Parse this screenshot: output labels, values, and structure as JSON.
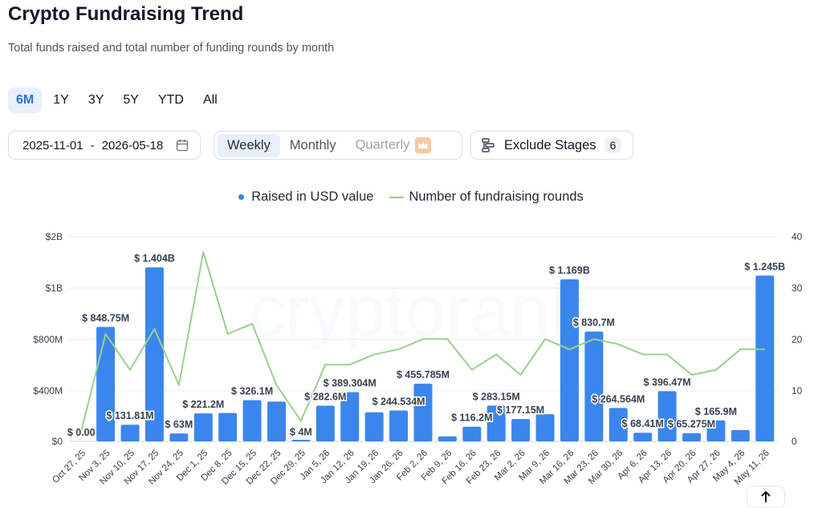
{
  "header": {
    "title": "Crypto Fundraising Trend",
    "subtitle": "Total funds raised and total number of funding rounds by month"
  },
  "ranges": [
    "6M",
    "1Y",
    "3Y",
    "5Y",
    "YTD",
    "All"
  ],
  "active_range": "6M",
  "date_range": {
    "start": "2025-11-01",
    "separator": "-",
    "end": "2026-05-18"
  },
  "periods": {
    "weekly": "Weekly",
    "monthly": "Monthly",
    "quarterly": "Quarterly",
    "active": "Weekly"
  },
  "exclude": {
    "label": "Exclude Stages",
    "count": "6"
  },
  "watermark": "cryptorank",
  "colors": {
    "bar": "#3b86ec",
    "line": "#98d28b",
    "accent": "#2f6fd6"
  },
  "chart_data": {
    "type": "bar",
    "legend_placement": "top-center",
    "grid": true,
    "categories": [
      "Oct 27, 25",
      "Nov 3, 25",
      "Nov 10, 25",
      "Nov 17, 25",
      "Nov 24, 25",
      "Dec 1, 25",
      "Dec 8, 25",
      "Dec 15, 25",
      "Dec 22, 25",
      "Dec 29, 25",
      "Jan 5, 26",
      "Jan 12, 26",
      "Jan 19, 26",
      "Jan 26, 26",
      "Feb 2, 26",
      "Feb 9, 26",
      "Feb 16, 26",
      "Feb 23, 26",
      "Mar 2, 26",
      "Mar 9, 26",
      "Mar 16, 26",
      "Mar 23, 26",
      "Mar 30, 26",
      "Apr 6, 26",
      "Apr 13, 26",
      "Apr 20, 26",
      "Apr 27, 26",
      "May 4, 26",
      "May 11, 26"
    ],
    "y_left": {
      "ticks": [
        "$0",
        "$400M",
        "$800M",
        "$1B",
        "$2B"
      ],
      "tick_values": [
        0,
        400,
        800,
        1000,
        2000
      ]
    },
    "y_right": {
      "ticks": [
        "0",
        "10",
        "20",
        "30",
        "40"
      ],
      "range": [
        0,
        40
      ]
    },
    "series": [
      {
        "name": "Raised in USD value",
        "type": "bar",
        "axis": "left",
        "unit": "USD millions",
        "values": [
          0,
          848.75,
          131.81,
          1404,
          63,
          221.2,
          225,
          326.1,
          315,
          4,
          282.6,
          389.304,
          230,
          244.534,
          455.785,
          40,
          116.2,
          283.15,
          177.15,
          215,
          1169,
          830.7,
          264.564,
          68.41,
          396.47,
          65.275,
          165.9,
          90,
          1245
        ],
        "labels": [
          "$ 0.00",
          "$ 848.75M",
          "$ 131.81M",
          "$ 1.404B",
          "$ 63M",
          "$ 221.2M",
          "",
          "$ 326.1M",
          "",
          "$ 4M",
          "$ 282.6M",
          "$ 389.304M",
          "",
          "$ 244.534M",
          "$ 455.785M",
          "",
          "$ 116.2M",
          "$ 283.15M",
          "$ 177.15M",
          "",
          "$ 1.169B",
          "$ 830.7M",
          "$ 264.564M",
          "$ 68.41M",
          "$ 396.47M",
          "$ 65.275M",
          "$ 165.9M",
          "",
          "$ 1.245B"
        ]
      },
      {
        "name": "Number of fundraising rounds",
        "type": "line",
        "axis": "right",
        "values": [
          2,
          21,
          14,
          22,
          11,
          37,
          21,
          23,
          11,
          4,
          15,
          15,
          17,
          18,
          20,
          20,
          14,
          17,
          13,
          20,
          18,
          20,
          19,
          17,
          17,
          13,
          14,
          18,
          18
        ]
      }
    ]
  }
}
